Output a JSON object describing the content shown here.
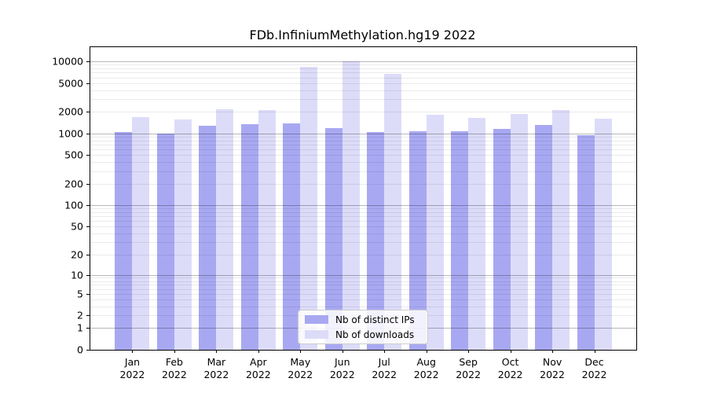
{
  "figure": {
    "background": "#ffffff"
  },
  "chart_data": {
    "type": "bar",
    "title": "FDb.InfiniumMethylation.hg19 2022",
    "categories": [
      "Jan",
      "Feb",
      "Mar",
      "Apr",
      "May",
      "Jun",
      "Jul",
      "Aug",
      "Sep",
      "Oct",
      "Nov",
      "Dec"
    ],
    "x_tick_second_line": "2022",
    "xlabel": "",
    "ylabel": "",
    "yscale": "log1p",
    "ylim": [
      0,
      15800
    ],
    "y_ticks": [
      0,
      1,
      2,
      5,
      10,
      20,
      50,
      100,
      200,
      500,
      1000,
      2000,
      5000,
      10000
    ],
    "grid": {
      "enabled": true,
      "major_lines": [
        1,
        10,
        100,
        1000,
        10000
      ],
      "minor_mantissas": [
        2,
        3,
        4,
        5,
        6,
        7,
        8,
        9
      ],
      "minor_decades": [
        1,
        10,
        100,
        1000
      ]
    },
    "series": [
      {
        "name": "Nb of distinct IPs",
        "color": "#a8a8f2",
        "values": [
          1050,
          985,
          1270,
          1350,
          1380,
          1190,
          1045,
          1080,
          1070,
          1160,
          1320,
          945
        ]
      },
      {
        "name": "Nb of downloads",
        "color": "#dcdcf9",
        "values": [
          1670,
          1550,
          2180,
          2100,
          8400,
          10000,
          6750,
          1820,
          1630,
          1860,
          2140,
          1625
        ]
      }
    ],
    "legend": {
      "position": "lower center",
      "entries": [
        "Nb of distinct IPs",
        "Nb of downloads"
      ]
    }
  }
}
